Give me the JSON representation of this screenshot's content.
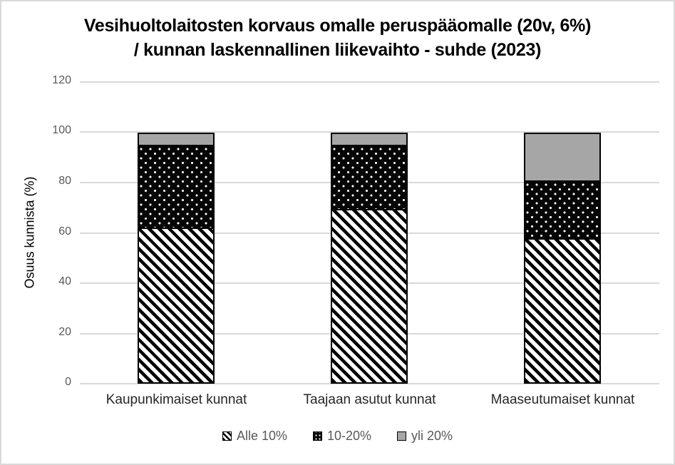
{
  "chart_data": {
    "type": "bar",
    "stacked": true,
    "title_lines": [
      "Vesihuoltolaitosten korvaus omalle peruspääomalle (20v, 6%)",
      "/ kunnan laskennallinen liikevaihto - suhde (2023)"
    ],
    "title": "Vesihuoltolaitosten korvaus omalle peruspääomalle (20v, 6%) / kunnan laskennallinen liikevaihto - suhde (2023)",
    "ylabel": "Osuus kunnista (%)",
    "xlabel": "",
    "ylim": [
      0,
      120
    ],
    "yticks": [
      0,
      20,
      40,
      60,
      80,
      100,
      120
    ],
    "grid": true,
    "legend_position": "bottom",
    "categories": [
      "Kaupunkimaiset kunnat",
      "Taajaan asutut kunnat",
      "Maaseutumaiset kunnat"
    ],
    "series": [
      {
        "name": "Alle 10%",
        "pattern": "diagonal-hatch",
        "values": [
          62.5,
          70,
          58
        ]
      },
      {
        "name": "10-20%",
        "pattern": "white-dots-on-black",
        "values": [
          33,
          25.5,
          23
        ]
      },
      {
        "name": "yli 20%",
        "pattern": "solid-gray",
        "values": [
          4.5,
          4.5,
          19
        ]
      }
    ],
    "colors": {
      "segment_gray": "#a6a6a6",
      "segment_black": "#060606",
      "pattern_white": "#ffffff",
      "gridline": "#d9d9d9",
      "tick_label": "#595959",
      "legend_label": "#595959",
      "category_label": "#262626",
      "title_text": "#000000",
      "frame_border": "#d9d9d9"
    }
  }
}
